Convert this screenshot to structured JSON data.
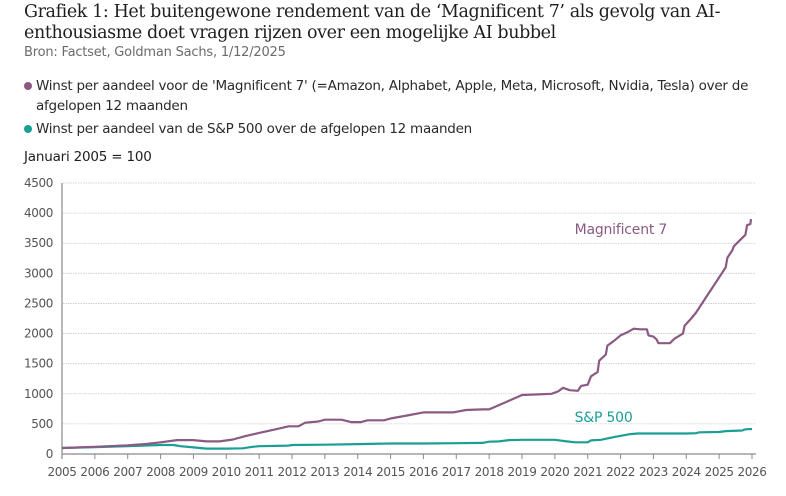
{
  "header": {
    "title": "Grafiek 1: Het buitengewone rendement van de ‘Magnificent 7’ als gevolg van AI-enthousiasme doet vragen rijzen over een mogelijke AI bubbel",
    "source": "Bron: Factset, Goldman Sachs, 1/12/2025"
  },
  "legend": [
    {
      "label": "Winst per aandeel voor de 'Magnificent 7' (=Amazon, Alphabet, Apple, Meta, Microsoft, Nvidia, Tesla) over de afgelopen 12 maanden",
      "color": "#8a5a83"
    },
    {
      "label": "Winst per aandeel van de S&P 500 over de afgelopen 12 maanden",
      "color": "#1a9e96"
    }
  ],
  "unit_label": "Januari 2005 = 100",
  "chart_data": {
    "type": "line",
    "title": "Grafiek 1: Het buitengewone rendement van de ‘Magnificent 7’ als gevolg van AI-enthousiasme doet vragen rijzen over een mogelijke AI bubbel",
    "xlabel": "",
    "ylabel": "Januari 2005 = 100",
    "xlim": [
      2005,
      2026
    ],
    "ylim": [
      0,
      4500
    ],
    "grid": true,
    "legend_position": "top-left",
    "x_ticks": [
      "2005",
      "2006",
      "2007",
      "2008",
      "2009",
      "2010",
      "2011",
      "2012",
      "2013",
      "2014",
      "2015",
      "2016",
      "2017",
      "2018",
      "2019",
      "2020",
      "2021",
      "2022",
      "2023",
      "2024",
      "2025",
      "2026"
    ],
    "y_ticks": [
      0,
      500,
      1000,
      1500,
      2000,
      2500,
      3000,
      3500,
      4000,
      4500
    ],
    "series": [
      {
        "name": "Magnificent 7",
        "color": "#8a5a83",
        "label_anchor": [
          2020.6,
          3650
        ],
        "points": [
          [
            2005.0,
            100
          ],
          [
            2006.0,
            120
          ],
          [
            2007.0,
            145
          ],
          [
            2007.6,
            170
          ],
          [
            2008.0,
            195
          ],
          [
            2008.5,
            230
          ],
          [
            2009.0,
            230
          ],
          [
            2009.4,
            210
          ],
          [
            2009.8,
            210
          ],
          [
            2010.2,
            240
          ],
          [
            2010.6,
            300
          ],
          [
            2011.0,
            350
          ],
          [
            2011.5,
            410
          ],
          [
            2011.9,
            460
          ],
          [
            2012.2,
            460
          ],
          [
            2012.4,
            520
          ],
          [
            2012.8,
            540
          ],
          [
            2013.0,
            570
          ],
          [
            2013.5,
            570
          ],
          [
            2013.8,
            530
          ],
          [
            2014.1,
            530
          ],
          [
            2014.3,
            560
          ],
          [
            2014.8,
            560
          ],
          [
            2015.0,
            590
          ],
          [
            2015.5,
            640
          ],
          [
            2016.0,
            690
          ],
          [
            2016.5,
            690
          ],
          [
            2016.9,
            690
          ],
          [
            2017.3,
            730
          ],
          [
            2017.8,
            740
          ],
          [
            2018.0,
            740
          ],
          [
            2018.5,
            860
          ],
          [
            2019.0,
            980
          ],
          [
            2019.5,
            990
          ],
          [
            2019.9,
            1000
          ],
          [
            2020.1,
            1040
          ],
          [
            2020.25,
            1100
          ],
          [
            2020.45,
            1060
          ],
          [
            2020.7,
            1050
          ],
          [
            2020.8,
            1130
          ],
          [
            2021.0,
            1150
          ],
          [
            2021.1,
            1290
          ],
          [
            2021.3,
            1360
          ],
          [
            2021.35,
            1550
          ],
          [
            2021.55,
            1650
          ],
          [
            2021.6,
            1800
          ],
          [
            2021.8,
            1880
          ],
          [
            2022.0,
            1970
          ],
          [
            2022.2,
            2020
          ],
          [
            2022.4,
            2080
          ],
          [
            2022.6,
            2070
          ],
          [
            2022.8,
            2070
          ],
          [
            2022.85,
            1970
          ],
          [
            2023.0,
            1950
          ],
          [
            2023.1,
            1900
          ],
          [
            2023.15,
            1840
          ],
          [
            2023.5,
            1840
          ],
          [
            2023.65,
            1920
          ],
          [
            2023.9,
            2000
          ],
          [
            2023.95,
            2130
          ],
          [
            2024.15,
            2250
          ],
          [
            2024.3,
            2350
          ],
          [
            2024.6,
            2600
          ],
          [
            2024.9,
            2850
          ],
          [
            2025.2,
            3100
          ],
          [
            2025.25,
            3260
          ],
          [
            2025.4,
            3380
          ],
          [
            2025.45,
            3450
          ],
          [
            2025.8,
            3640
          ],
          [
            2025.85,
            3800
          ],
          [
            2025.95,
            3820
          ],
          [
            2025.97,
            3900
          ]
        ]
      },
      {
        "name": "S&P 500",
        "color": "#1a9e96",
        "label_anchor": [
          2020.6,
          530
        ],
        "points": [
          [
            2005.0,
            100
          ],
          [
            2006.0,
            115
          ],
          [
            2007.0,
            130
          ],
          [
            2008.0,
            150
          ],
          [
            2008.4,
            150
          ],
          [
            2008.6,
            130
          ],
          [
            2009.0,
            110
          ],
          [
            2009.4,
            90
          ],
          [
            2010.0,
            90
          ],
          [
            2010.5,
            95
          ],
          [
            2010.8,
            120
          ],
          [
            2011.0,
            130
          ],
          [
            2011.5,
            135
          ],
          [
            2011.9,
            140
          ],
          [
            2012.0,
            150
          ],
          [
            2013.0,
            155
          ],
          [
            2014.0,
            165
          ],
          [
            2015.0,
            175
          ],
          [
            2016.0,
            175
          ],
          [
            2017.0,
            180
          ],
          [
            2017.8,
            185
          ],
          [
            2018.0,
            205
          ],
          [
            2018.3,
            210
          ],
          [
            2018.6,
            230
          ],
          [
            2019.0,
            235
          ],
          [
            2019.5,
            235
          ],
          [
            2020.0,
            235
          ],
          [
            2020.3,
            215
          ],
          [
            2020.6,
            195
          ],
          [
            2021.0,
            195
          ],
          [
            2021.1,
            225
          ],
          [
            2021.4,
            235
          ],
          [
            2021.8,
            280
          ],
          [
            2022.3,
            330
          ],
          [
            2022.5,
            340
          ],
          [
            2023.0,
            340
          ],
          [
            2023.5,
            340
          ],
          [
            2024.0,
            340
          ],
          [
            2024.3,
            345
          ],
          [
            2024.4,
            360
          ],
          [
            2025.0,
            365
          ],
          [
            2025.2,
            380
          ],
          [
            2025.7,
            390
          ],
          [
            2025.8,
            410
          ],
          [
            2026.0,
            415
          ]
        ]
      }
    ]
  }
}
